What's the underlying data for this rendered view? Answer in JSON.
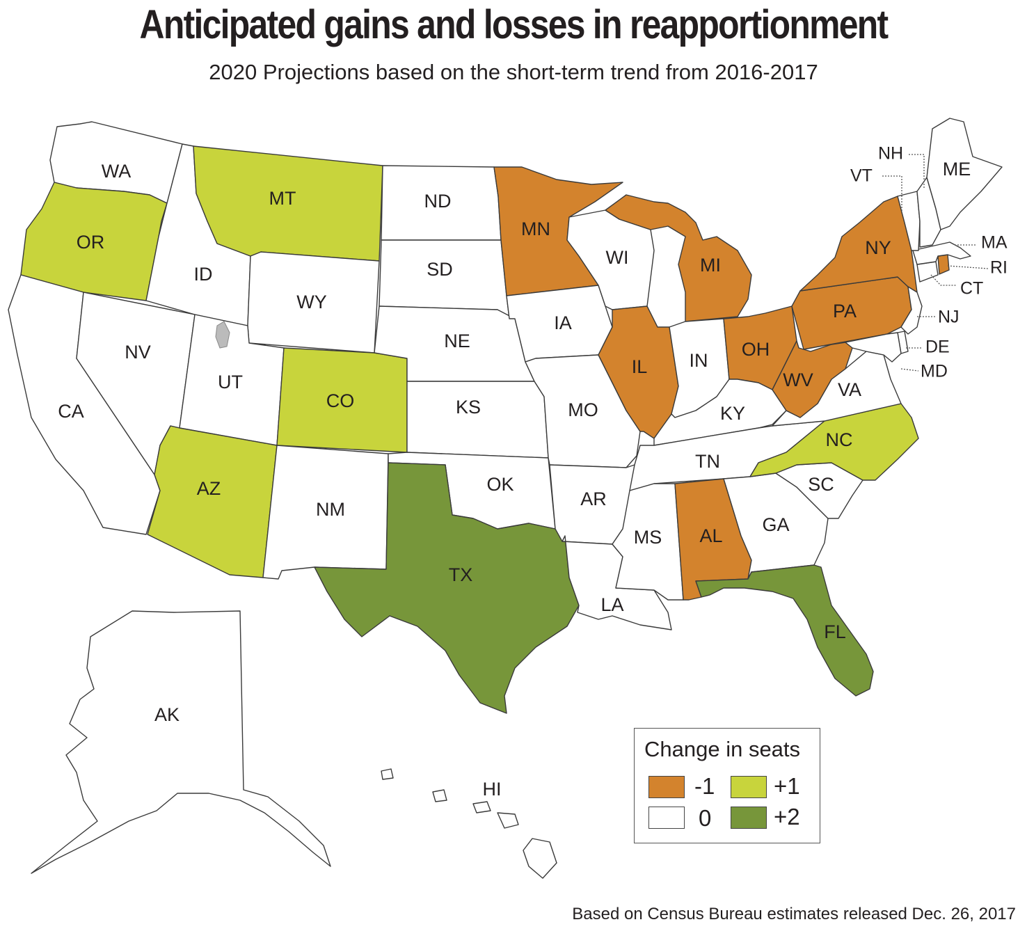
{
  "title": "Anticipated gains and losses in reapportionment",
  "subtitle": "2020 Projections based on the short-term trend from 2016-2017",
  "source": "Based on Census Bureau estimates released Dec. 26, 2017",
  "colors": {
    "loss1": "#d3832d",
    "none": "#ffffff",
    "gain1": "#c8d43c",
    "gain2": "#77963a"
  },
  "legend": {
    "title": "Change in seats",
    "items": [
      {
        "label": "-1",
        "color_key": "loss1"
      },
      {
        "label": "+1",
        "color_key": "gain1"
      },
      {
        "label": "0",
        "color_key": "none"
      },
      {
        "label": "+2",
        "color_key": "gain2"
      }
    ]
  },
  "states": {
    "WA": 0,
    "OR": 1,
    "CA": 0,
    "NV": 0,
    "ID": 0,
    "MT": 1,
    "WY": 0,
    "UT": 0,
    "AZ": 1,
    "CO": 1,
    "NM": 0,
    "ND": 0,
    "SD": 0,
    "NE": 0,
    "KS": 0,
    "OK": 0,
    "TX": 2,
    "MN": -1,
    "IA": 0,
    "MO": 0,
    "AR": 0,
    "LA": 0,
    "WI": 0,
    "IL": -1,
    "MI": -1,
    "IN": 0,
    "OH": -1,
    "KY": 0,
    "TN": 0,
    "MS": 0,
    "AL": -1,
    "GA": 0,
    "FL": 2,
    "SC": 0,
    "NC": 1,
    "VA": 0,
    "WV": -1,
    "PA": -1,
    "NY": -1,
    "NJ": 0,
    "DE": 0,
    "MD": 0,
    "CT": 0,
    "RI": -1,
    "MA": 0,
    "VT": 0,
    "NH": 0,
    "ME": 0,
    "AK": 0,
    "HI": 0
  },
  "labels": {
    "WA": "WA",
    "OR": "OR",
    "CA": "CA",
    "NV": "NV",
    "ID": "ID",
    "MT": "MT",
    "WY": "WY",
    "UT": "UT",
    "AZ": "AZ",
    "CO": "CO",
    "NM": "NM",
    "ND": "ND",
    "SD": "SD",
    "NE": "NE",
    "KS": "KS",
    "OK": "OK",
    "TX": "TX",
    "MN": "MN",
    "IA": "IA",
    "MO": "MO",
    "AR": "AR",
    "LA": "LA",
    "WI": "WI",
    "IL": "IL",
    "MI": "MI",
    "IN": "IN",
    "OH": "OH",
    "KY": "KY",
    "TN": "TN",
    "MS": "MS",
    "AL": "AL",
    "GA": "GA",
    "FL": "FL",
    "SC": "SC",
    "NC": "NC",
    "VA": "VA",
    "WV": "WV",
    "PA": "PA",
    "NY": "NY",
    "NJ": "NJ",
    "DE": "DE",
    "MD": "MD",
    "CT": "CT",
    "RI": "RI",
    "MA": "MA",
    "VT": "VT",
    "NH": "NH",
    "ME": "ME",
    "AK": "AK",
    "HI": "HI"
  }
}
